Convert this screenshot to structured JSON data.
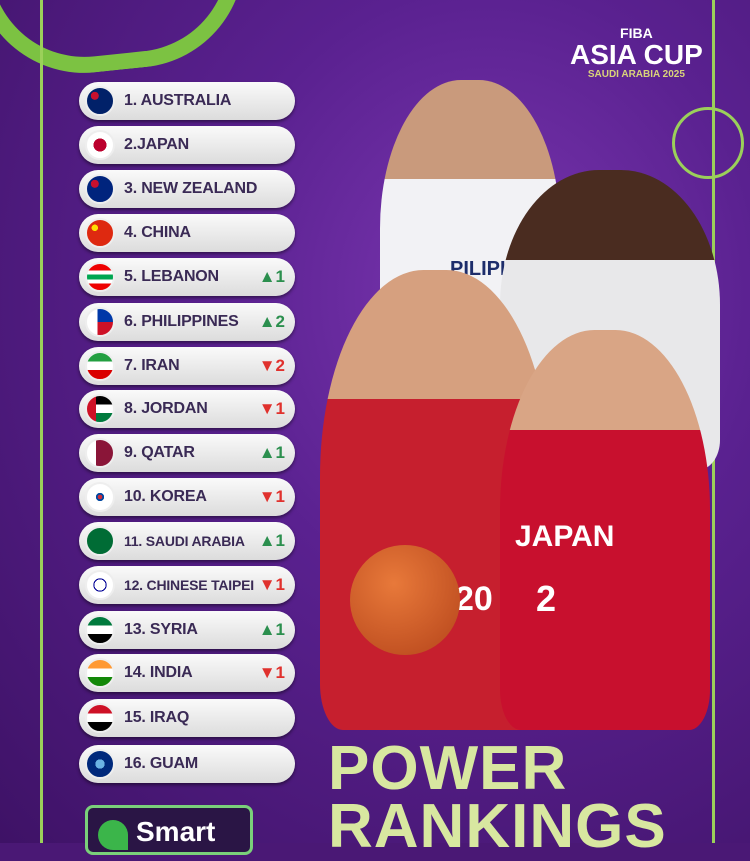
{
  "logo": {
    "brand": "FIBA",
    "event": "ASIA CUP",
    "host": "SAUDI ARABIA 2025"
  },
  "title": {
    "line1": "POWER",
    "line2": "RANKINGS"
  },
  "sponsor": "Smart",
  "jerseys": {
    "philippines": "PILIPINAS",
    "japan": "JAPAN",
    "japan_number": "2",
    "lebanon_number": "20"
  },
  "colors": {
    "up": "#2b8f4e",
    "down": "#e0312d",
    "background": "#5a2190",
    "accent": "#7cc242"
  },
  "rankings": [
    {
      "label": "1. AUSTRALIA",
      "change": "",
      "dir": ""
    },
    {
      "label": "2.JAPAN",
      "change": "",
      "dir": ""
    },
    {
      "label": "3. NEW ZEALAND",
      "change": "",
      "dir": ""
    },
    {
      "label": "4. CHINA",
      "change": "",
      "dir": ""
    },
    {
      "label": "5. LEBANON",
      "change": "▲1",
      "dir": "up"
    },
    {
      "label": "6. PHILIPPINES",
      "change": "▲2",
      "dir": "up"
    },
    {
      "label": "7. IRAN",
      "change": "▼2",
      "dir": "down"
    },
    {
      "label": "8. JORDAN",
      "change": "▼1",
      "dir": "down"
    },
    {
      "label": "9. QATAR",
      "change": "▲1",
      "dir": "up"
    },
    {
      "label": "10. KOREA",
      "change": "▼1",
      "dir": "down"
    },
    {
      "label": "11. SAUDI ARABIA",
      "change": "▲1",
      "dir": "up"
    },
    {
      "label": "12. CHINESE TAIPEI",
      "change": "▼1",
      "dir": "down"
    },
    {
      "label": "13. SYRIA",
      "change": "▲1",
      "dir": "up"
    },
    {
      "label": "14. INDIA",
      "change": "▼1",
      "dir": "down"
    },
    {
      "label": "15. IRAQ",
      "change": "",
      "dir": ""
    },
    {
      "label": "16. GUAM",
      "change": "",
      "dir": ""
    }
  ]
}
